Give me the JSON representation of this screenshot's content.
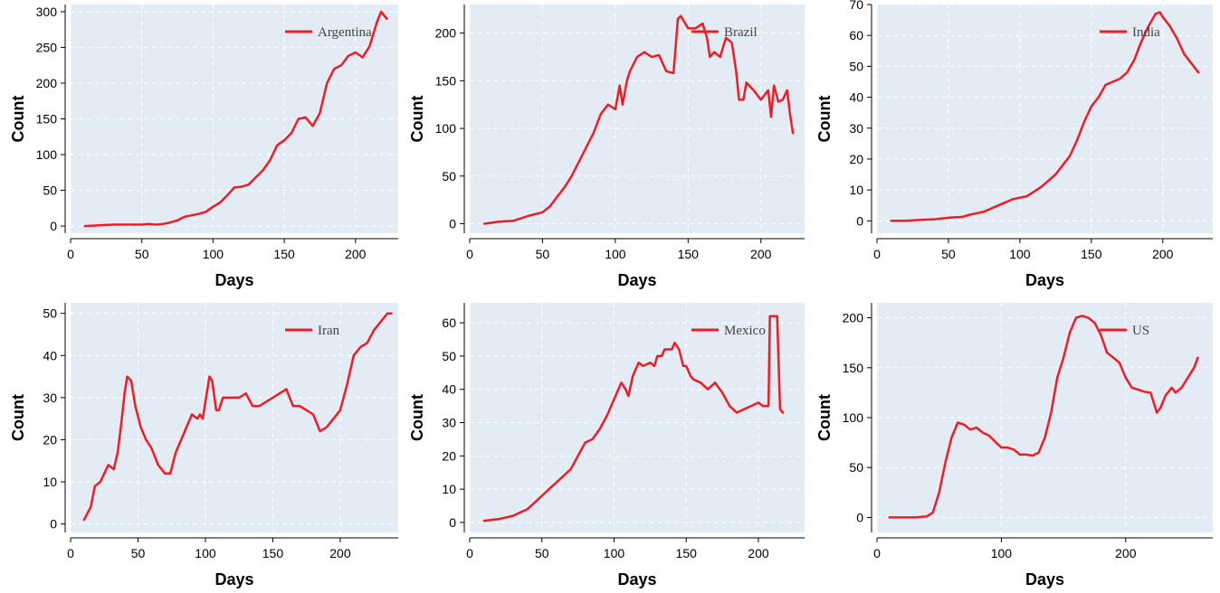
{
  "colors": {
    "background": "#ffffff",
    "plot_background": "#e3ecf4",
    "grid": "#ffffff",
    "series": "#ee1c25"
  },
  "chart_data": [
    {
      "type": "line",
      "xlabel": "Days",
      "ylabel": "Count",
      "xlim": [
        0,
        230
      ],
      "ylim": [
        -10,
        310
      ],
      "xticks": [
        0,
        50,
        100,
        150,
        200
      ],
      "yticks": [
        0,
        50,
        100,
        150,
        200,
        250,
        300
      ],
      "grid": true,
      "legend_position": "top-right",
      "series": [
        {
          "name": "Argentina",
          "color": "#ee1c25",
          "x": [
            10,
            20,
            30,
            40,
            50,
            55,
            60,
            65,
            70,
            75,
            80,
            85,
            90,
            95,
            100,
            105,
            110,
            115,
            120,
            125,
            130,
            135,
            140,
            145,
            150,
            155,
            160,
            165,
            170,
            175,
            180,
            185,
            190,
            195,
            200,
            205,
            210,
            215,
            218,
            222
          ],
          "y": [
            0,
            1,
            2,
            2,
            2,
            3,
            2,
            3,
            5,
            8,
            13,
            15,
            17,
            20,
            27,
            33,
            43,
            54,
            55,
            58,
            68,
            78,
            92,
            113,
            120,
            130,
            150,
            152,
            140,
            158,
            200,
            220,
            225,
            238,
            243,
            236,
            252,
            285,
            300,
            290
          ]
        }
      ]
    },
    {
      "type": "line",
      "xlabel": "Days",
      "ylabel": "Count",
      "xlim": [
        0,
        230
      ],
      "ylim": [
        -10,
        230
      ],
      "xticks": [
        0,
        50,
        100,
        150,
        200
      ],
      "yticks": [
        0,
        50,
        100,
        150,
        200
      ],
      "grid": true,
      "legend_position": "top-right",
      "series": [
        {
          "name": "Brazil",
          "color": "#ee1c25",
          "x": [
            10,
            20,
            30,
            40,
            50,
            55,
            60,
            65,
            70,
            75,
            80,
            85,
            90,
            95,
            100,
            103,
            105,
            108,
            110,
            115,
            120,
            125,
            130,
            135,
            140,
            143,
            145,
            150,
            155,
            160,
            163,
            165,
            168,
            172,
            176,
            180,
            183,
            185,
            188,
            190,
            195,
            200,
            205,
            207,
            209,
            212,
            215,
            218,
            220,
            222
          ],
          "y": [
            0,
            2,
            3,
            8,
            12,
            18,
            28,
            38,
            50,
            65,
            80,
            95,
            115,
            125,
            120,
            145,
            125,
            150,
            160,
            175,
            180,
            175,
            177,
            160,
            158,
            215,
            218,
            205,
            205,
            210,
            195,
            175,
            180,
            175,
            195,
            190,
            160,
            130,
            130,
            148,
            140,
            130,
            140,
            112,
            145,
            128,
            130,
            140,
            115,
            95
          ]
        }
      ]
    },
    {
      "type": "line",
      "xlabel": "Days",
      "ylabel": "Count",
      "xlim": [
        0,
        235
      ],
      "ylim": [
        -4,
        70
      ],
      "xticks": [
        0,
        50,
        100,
        150,
        200
      ],
      "yticks": [
        0,
        10,
        20,
        30,
        40,
        50,
        60,
        70
      ],
      "grid": true,
      "legend_position": "top-right",
      "series": [
        {
          "name": "India",
          "color": "#ee1c25",
          "x": [
            10,
            20,
            30,
            40,
            50,
            60,
            65,
            70,
            75,
            80,
            85,
            90,
            95,
            100,
            105,
            110,
            115,
            120,
            125,
            130,
            135,
            140,
            145,
            150,
            155,
            160,
            165,
            170,
            175,
            180,
            185,
            190,
            195,
            198,
            200,
            205,
            210,
            215,
            220,
            225
          ],
          "y": [
            0,
            0,
            0.3,
            0.5,
            1,
            1.3,
            2,
            2.5,
            3,
            4,
            5,
            6,
            7,
            7.5,
            8,
            9.5,
            11,
            13,
            15,
            18,
            21,
            26,
            32,
            37,
            40,
            44,
            45,
            46,
            48,
            52,
            58,
            63,
            67,
            67.5,
            66,
            63,
            59,
            54,
            51,
            48
          ]
        }
      ]
    },
    {
      "type": "line",
      "xlabel": "Days",
      "ylabel": "Count",
      "xlim": [
        0,
        243
      ],
      "ylim": [
        -2,
        52.5
      ],
      "xticks": [
        0,
        50,
        100,
        150,
        200
      ],
      "yticks": [
        0,
        10,
        20,
        30,
        40,
        50
      ],
      "grid": true,
      "legend_position": "top-right",
      "series": [
        {
          "name": "Iran",
          "color": "#ee1c25",
          "x": [
            10,
            15,
            18,
            22,
            25,
            28,
            32,
            35,
            38,
            40,
            42,
            45,
            48,
            52,
            56,
            60,
            65,
            70,
            74,
            78,
            82,
            86,
            90,
            94,
            96,
            98,
            100,
            103,
            105,
            108,
            110,
            113,
            116,
            120,
            125,
            130,
            135,
            140,
            145,
            150,
            155,
            160,
            165,
            170,
            175,
            180,
            185,
            190,
            195,
            200,
            205,
            210,
            215,
            220,
            225,
            230,
            235,
            238
          ],
          "y": [
            1,
            4,
            9,
            10,
            12,
            14,
            13,
            17,
            25,
            31,
            35,
            34,
            28,
            23,
            20,
            18,
            14,
            12,
            12,
            17,
            20,
            23,
            26,
            25,
            26,
            25,
            29,
            35,
            34,
            27,
            27,
            30,
            30,
            30,
            30,
            31,
            28,
            28,
            29,
            30,
            31,
            32,
            28,
            28,
            27,
            26,
            22,
            23,
            25,
            27,
            33,
            40,
            42,
            43,
            46,
            48,
            50,
            50
          ]
        }
      ]
    },
    {
      "type": "line",
      "xlabel": "Days",
      "ylabel": "Count",
      "xlim": [
        0,
        232
      ],
      "ylim": [
        -3,
        66
      ],
      "xticks": [
        0,
        50,
        100,
        150,
        200
      ],
      "yticks": [
        0,
        10,
        20,
        30,
        40,
        50,
        60
      ],
      "grid": true,
      "legend_position": "top-right",
      "series": [
        {
          "name": "Mexico",
          "color": "#ee1c25",
          "x": [
            10,
            20,
            30,
            35,
            40,
            45,
            50,
            55,
            60,
            65,
            70,
            75,
            80,
            85,
            90,
            95,
            100,
            105,
            108,
            110,
            113,
            117,
            120,
            125,
            128,
            130,
            133,
            135,
            140,
            142,
            145,
            148,
            150,
            153,
            155,
            160,
            165,
            170,
            175,
            180,
            185,
            190,
            195,
            200,
            203,
            206,
            207,
            208,
            210,
            213,
            215,
            217
          ],
          "y": [
            0.5,
            1,
            2,
            3,
            4,
            6,
            8,
            10,
            12,
            14,
            16,
            20,
            24,
            25,
            28,
            32,
            37,
            42,
            40,
            38,
            44,
            48,
            47,
            48,
            47,
            50,
            50,
            52,
            52,
            54,
            52,
            47,
            47,
            44,
            43,
            42,
            40,
            42,
            39,
            35,
            33,
            34,
            35,
            36,
            35,
            35,
            35,
            62,
            62,
            62,
            34,
            33
          ]
        }
      ]
    },
    {
      "type": "line",
      "xlabel": "Days",
      "ylabel": "Count",
      "xlim": [
        0,
        270
      ],
      "ylim": [
        -15,
        215
      ],
      "xticks": [
        0,
        100,
        200
      ],
      "yticks": [
        0,
        50,
        100,
        150,
        200
      ],
      "grid": true,
      "legend_position": "top-right",
      "series": [
        {
          "name": "US",
          "color": "#ee1c25",
          "x": [
            10,
            20,
            30,
            40,
            45,
            50,
            55,
            60,
            65,
            70,
            75,
            80,
            85,
            90,
            95,
            100,
            105,
            110,
            115,
            120,
            125,
            130,
            135,
            140,
            145,
            150,
            155,
            160,
            165,
            170,
            175,
            180,
            185,
            190,
            195,
            200,
            205,
            210,
            215,
            220,
            225,
            228,
            232,
            237,
            240,
            245,
            250,
            255,
            258
          ],
          "y": [
            0,
            0,
            0,
            1,
            5,
            25,
            55,
            80,
            95,
            93,
            88,
            90,
            85,
            82,
            76,
            70,
            70,
            68,
            63,
            63,
            62,
            65,
            80,
            105,
            140,
            160,
            185,
            200,
            202,
            200,
            195,
            183,
            165,
            160,
            155,
            140,
            130,
            128,
            126,
            125,
            105,
            110,
            122,
            130,
            125,
            130,
            140,
            150,
            160
          ]
        }
      ]
    }
  ]
}
